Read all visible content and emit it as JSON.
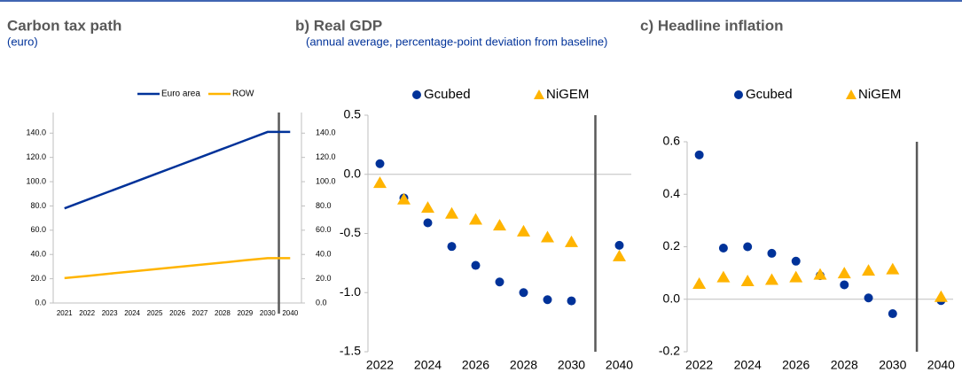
{
  "chart_data": [
    {
      "type": "line",
      "title": "Carbon tax path",
      "subtitle": "(euro)",
      "categories": [
        "2021",
        "2022",
        "2023",
        "2024",
        "2025",
        "2026",
        "2027",
        "2028",
        "2029",
        "2030",
        "2040"
      ],
      "series": [
        {
          "name": "Euro area",
          "color": "#003299",
          "values": [
            78,
            85,
            92,
            99,
            106,
            113,
            120,
            127,
            134,
            141,
            141
          ]
        },
        {
          "name": "ROW",
          "color": "#FFB400",
          "values": [
            20.5,
            22.3,
            24.2,
            26.0,
            27.8,
            29.7,
            31.5,
            33.3,
            35.2,
            37.0,
            37.0
          ]
        }
      ],
      "ylim": [
        0,
        157
      ],
      "yticks": [
        {
          "value": 0,
          "label": "0.0"
        },
        {
          "value": 20,
          "label": "20.0"
        },
        {
          "value": 40,
          "label": "40.0"
        },
        {
          "value": 60,
          "label": "60.0"
        },
        {
          "value": 80,
          "label": "80.0"
        },
        {
          "value": 100,
          "label": "100.0"
        },
        {
          "value": 120,
          "label": "120.0"
        },
        {
          "value": 140,
          "label": "140.0"
        }
      ],
      "y2lim": [
        0,
        157
      ],
      "y2ticks": [
        {
          "value": 0,
          "label": "0.0"
        },
        {
          "value": 20,
          "label": "20.0"
        },
        {
          "value": 40,
          "label": "40.0"
        },
        {
          "value": 60,
          "label": "60.0"
        },
        {
          "value": 80,
          "label": "80.0"
        },
        {
          "value": 100,
          "label": "100.0"
        },
        {
          "value": 120,
          "label": "120.0"
        },
        {
          "value": 140,
          "label": "140.0"
        }
      ]
    },
    {
      "type": "scatter",
      "title": "b) Real GDP",
      "subtitle": "(annual average, percentage-point deviation from baseline)",
      "categories": [
        "2022",
        null,
        "2024",
        null,
        "2026",
        null,
        "2028",
        null,
        "2030",
        "2040"
      ],
      "series": [
        {
          "name": "Gcubed",
          "color": "#003299",
          "marker": "circle",
          "values": [
            0.09,
            -0.2,
            -0.41,
            -0.61,
            -0.77,
            -0.91,
            -1.0,
            -1.06,
            -1.07,
            -0.6
          ]
        },
        {
          "name": "NiGEM",
          "color": "#FFB400",
          "marker": "triangle",
          "values": [
            -0.07,
            -0.21,
            -0.28,
            -0.33,
            -0.38,
            -0.43,
            -0.48,
            -0.53,
            -0.57,
            -0.69
          ]
        }
      ],
      "ylim": [
        -1.5,
        0.5
      ],
      "yticks": [
        -1.5,
        {
          "value": -1,
          "label": "-1.0"
        },
        -0.5,
        {
          "value": 0,
          "label": "0.0"
        },
        0.5
      ]
    },
    {
      "type": "scatter",
      "title": "c) Headline inflation",
      "categories": [
        "2022",
        null,
        "2024",
        null,
        "2026",
        null,
        "2028",
        null,
        "2030",
        "2040"
      ],
      "series": [
        {
          "name": "Gcubed",
          "color": "#003299",
          "marker": "circle",
          "values": [
            0.55,
            0.195,
            0.2,
            0.175,
            0.145,
            0.09,
            0.055,
            0.005,
            -0.055,
            -0.005
          ]
        },
        {
          "name": "NiGEM",
          "color": "#FFB400",
          "marker": "triangle",
          "values": [
            0.06,
            0.085,
            0.07,
            0.075,
            0.085,
            0.095,
            0.1,
            0.11,
            0.115,
            0.01
          ]
        }
      ],
      "ylim": [
        -0.2,
        0.6
      ],
      "yticks": [
        -0.2,
        {
          "value": 0,
          "label": "0.0"
        },
        0.2,
        0.4,
        0.6
      ]
    }
  ]
}
